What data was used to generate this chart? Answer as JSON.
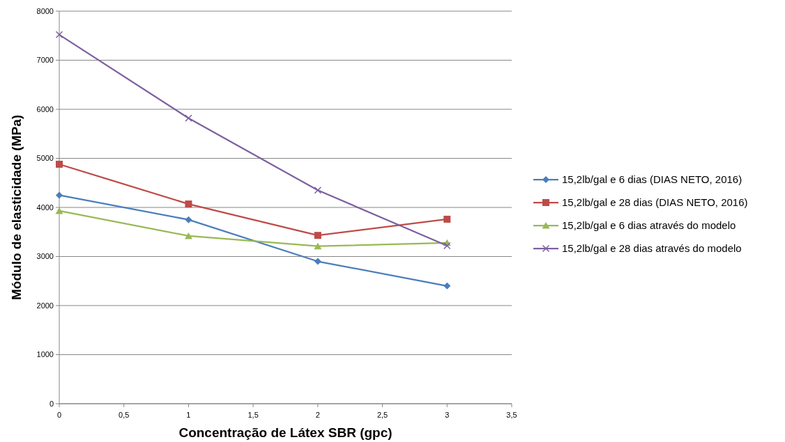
{
  "chart_data": {
    "type": "line",
    "xlabel": "Concentração de Látex SBR (gpc)",
    "ylabel": "Módulo de elasticidade (MPa)",
    "x": [
      0,
      1,
      2,
      3
    ],
    "xlim": [
      0,
      3.5
    ],
    "xticks": [
      0,
      {
        "value": 0.5,
        "label": "0,5"
      },
      1,
      {
        "value": 1.5,
        "label": "1,5"
      },
      2,
      {
        "value": 2.5,
        "label": "2,5"
      },
      3,
      {
        "value": 3.5,
        "label": "3,5"
      }
    ],
    "ylim": [
      0,
      8000
    ],
    "yticks": [
      0,
      1000,
      2000,
      3000,
      4000,
      5000,
      6000,
      7000,
      8000
    ],
    "grid": "y",
    "legend": "right",
    "series": [
      {
        "name": "15,2lb/gal e 6 dias (DIAS NETO, 2016)",
        "color": "#4a7ebb",
        "marker": "diamond",
        "values": [
          4250,
          3750,
          2900,
          2400
        ]
      },
      {
        "name": "15,2lb/gal e 28 dias (DIAS NETO, 2016)",
        "color": "#be4b48",
        "marker": "square",
        "values": [
          4880,
          4070,
          3430,
          3760
        ]
      },
      {
        "name": "15,2lb/gal e 6 dias através do modelo",
        "color": "#98b954",
        "marker": "triangle",
        "values": [
          3930,
          3420,
          3210,
          3280
        ]
      },
      {
        "name": "15,2lb/gal e 28 dias através do modelo",
        "color": "#7d60a0",
        "marker": "cross",
        "values": [
          7520,
          5820,
          4350,
          3220
        ]
      }
    ]
  }
}
